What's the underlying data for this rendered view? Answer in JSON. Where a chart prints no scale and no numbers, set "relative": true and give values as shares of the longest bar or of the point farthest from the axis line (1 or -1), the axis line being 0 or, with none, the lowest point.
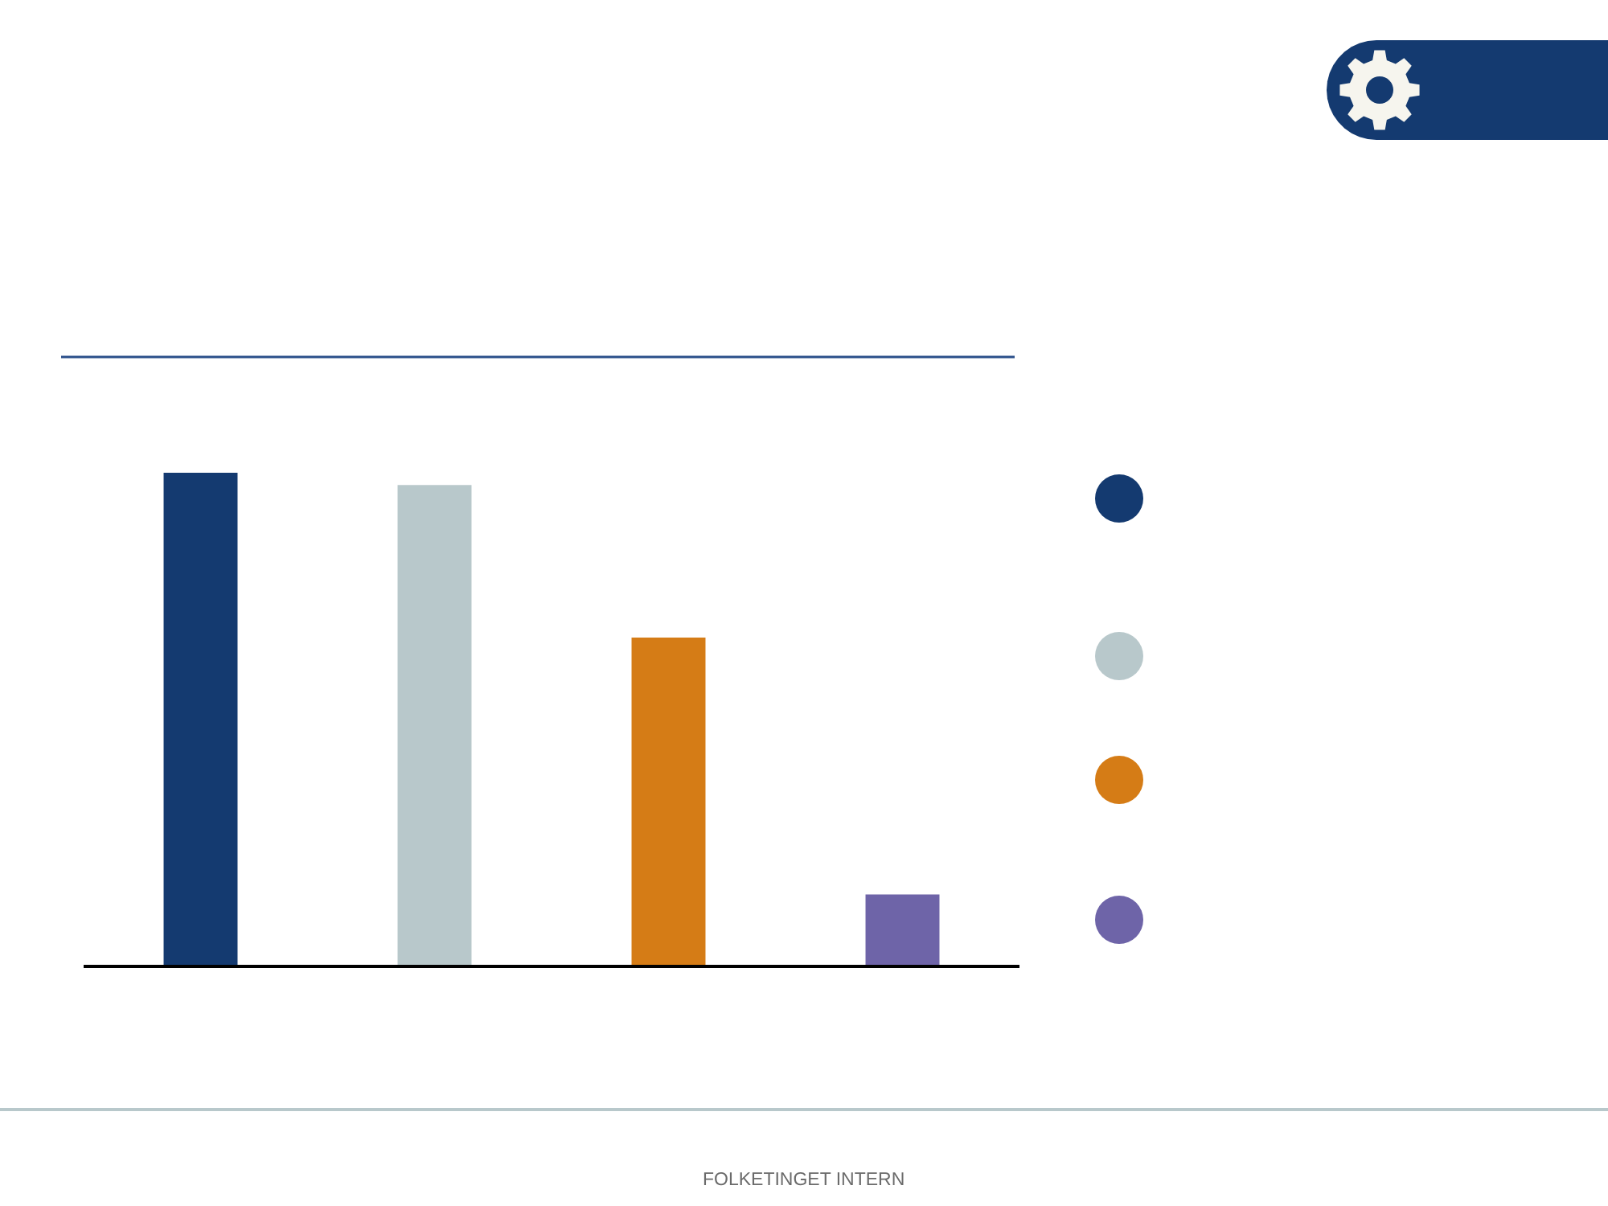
{
  "chart_data": {
    "type": "bar",
    "categories": [
      null,
      null,
      null,
      null
    ],
    "values": [
      1,
      0.975,
      0.665,
      0.143
    ],
    "colors": [
      "#143a70",
      "#b8c8cb",
      "#d57c16",
      "#6e64a8"
    ],
    "relative": true,
    "annotations": [
      "FOLKETINGET INTERN"
    ]
  }
}
